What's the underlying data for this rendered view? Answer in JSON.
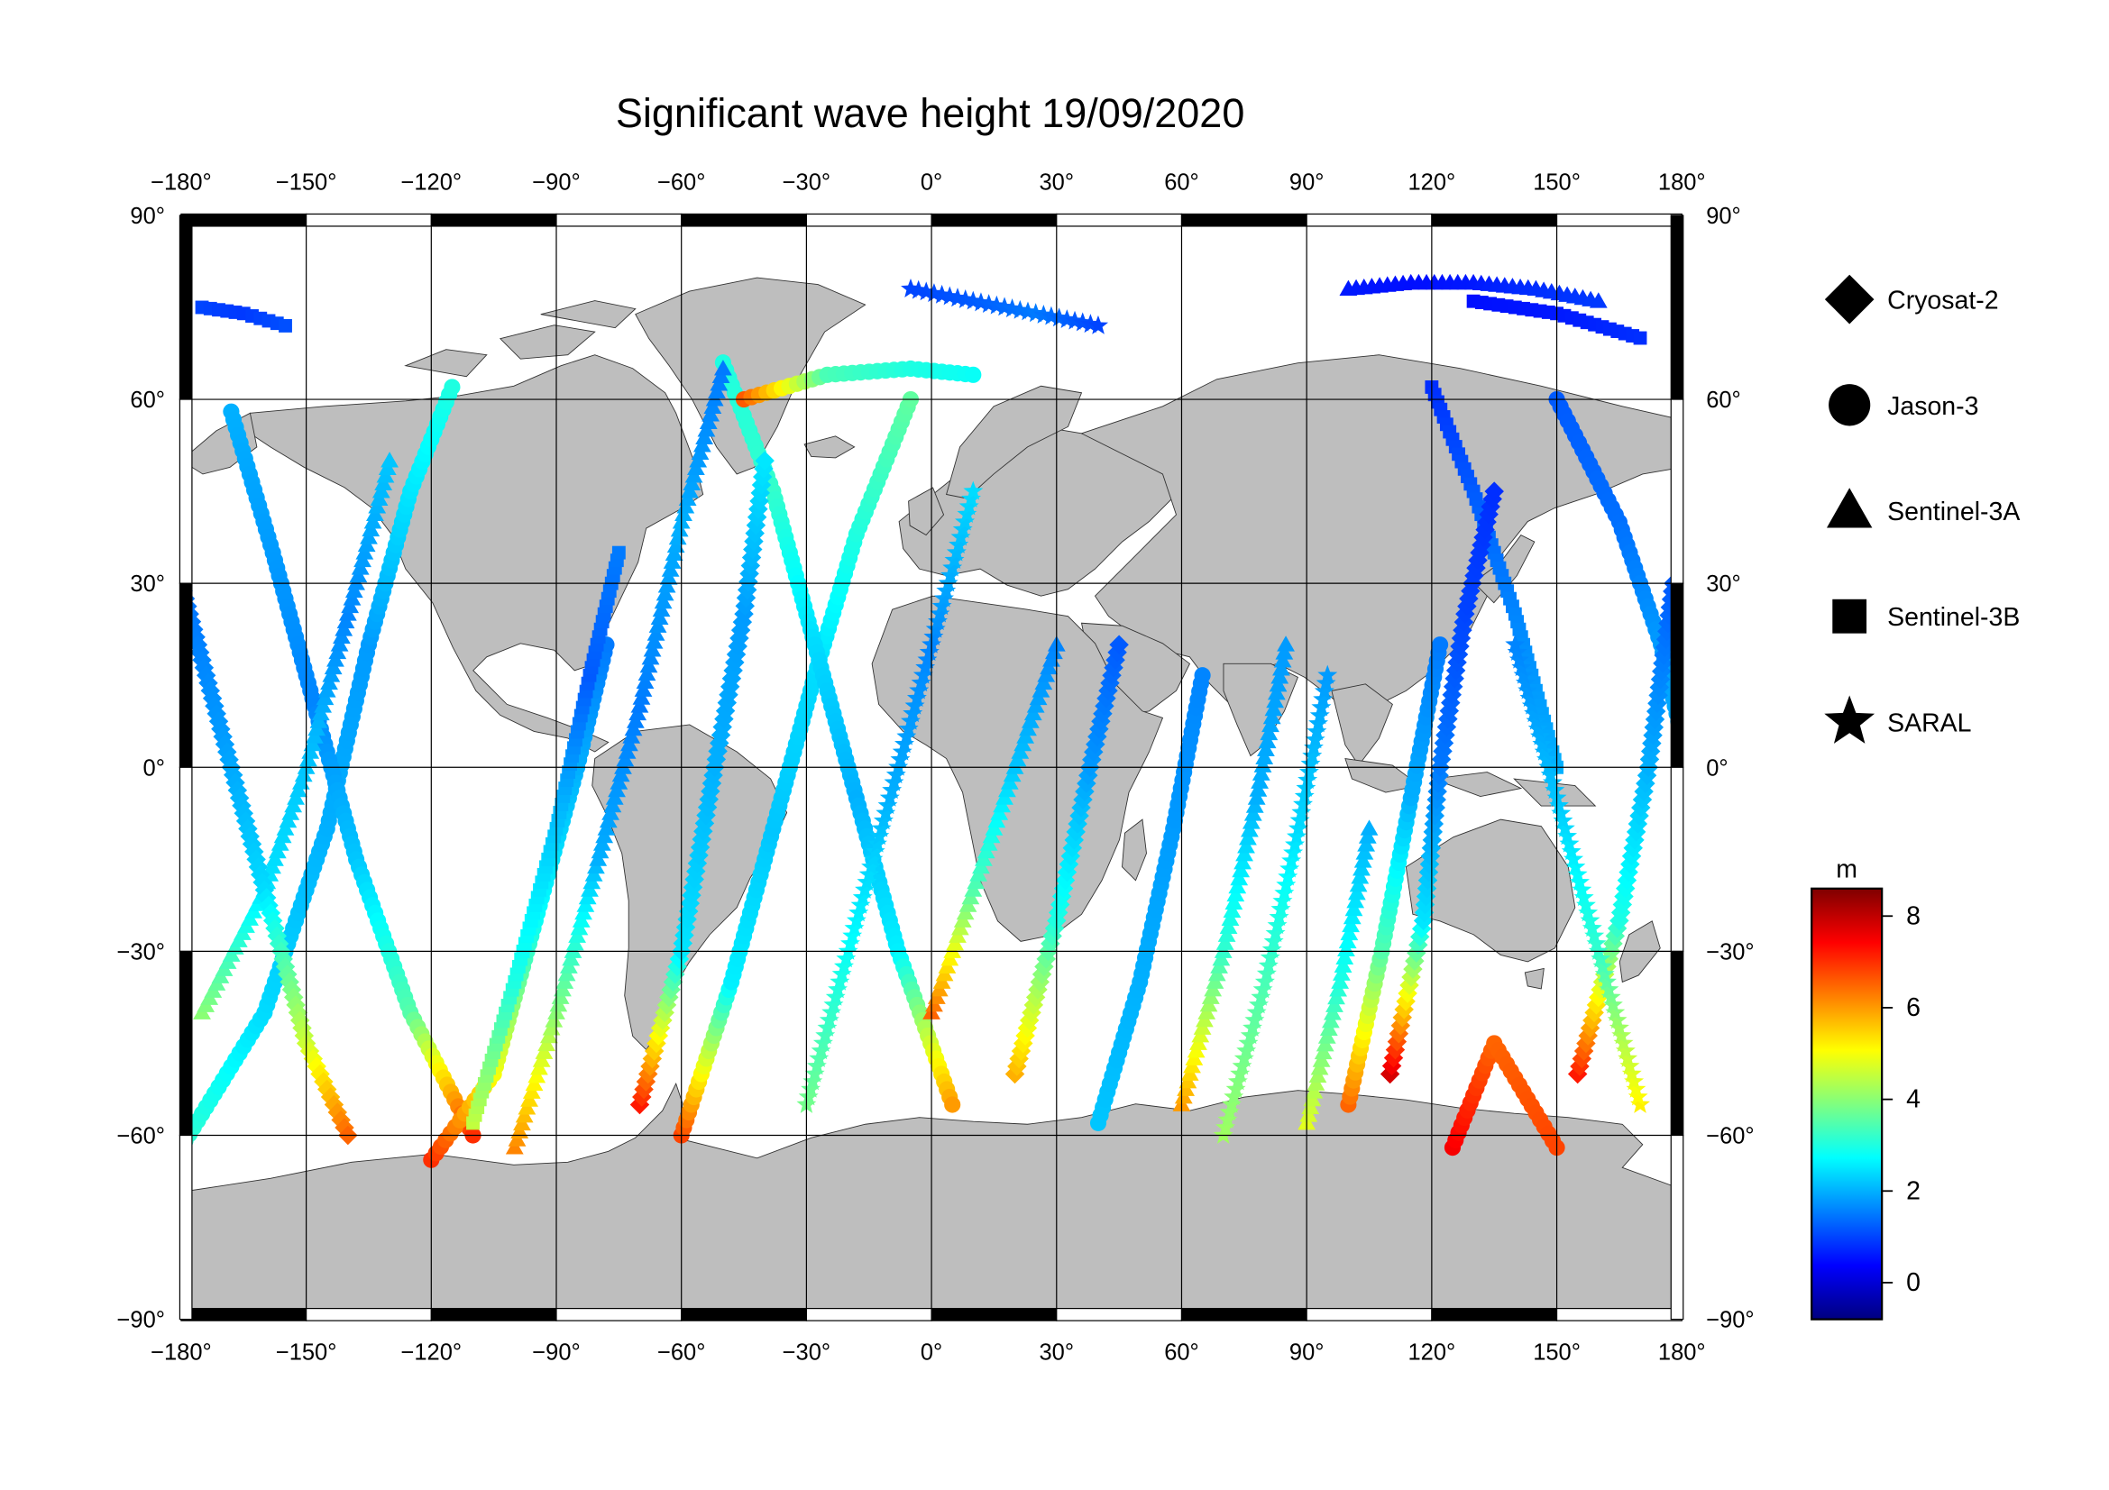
{
  "title": "Significant wave height 19/09/2020",
  "axes": {
    "lon_ticks": [
      -180,
      -150,
      -120,
      -90,
      -60,
      -30,
      0,
      30,
      60,
      90,
      120,
      150,
      180
    ],
    "lat_ticks": [
      90,
      60,
      30,
      0,
      -30,
      -60,
      -90
    ],
    "degree_symbol": "°"
  },
  "legend": {
    "items": [
      {
        "label": "Cryosat-2",
        "marker": "diamond"
      },
      {
        "label": "Jason-3",
        "marker": "circle"
      },
      {
        "label": "Sentinel-3A",
        "marker": "triangle"
      },
      {
        "label": "Sentinel-3B",
        "marker": "square"
      },
      {
        "label": "SARAL",
        "marker": "star"
      }
    ]
  },
  "colorbar": {
    "unit": "m",
    "min": -0.8,
    "max": 8.6,
    "ticks": [
      0,
      2,
      4,
      6,
      8
    ],
    "colormap": "jet"
  },
  "colors": {
    "land": "#bebebe",
    "ocean": "#ffffff",
    "frame": "#000000",
    "grid": "#000000"
  },
  "chart_data": {
    "type": "scatter",
    "title": "Significant wave height 19/09/2020",
    "xlabel": "",
    "ylabel": "",
    "xlim": [
      -180,
      180
    ],
    "ylim": [
      -90,
      90
    ],
    "value_unit": "m",
    "value_range": [
      -0.8,
      8.6
    ],
    "series": [
      {
        "name": "Cryosat-2",
        "marker": "diamond"
      },
      {
        "name": "Jason-3",
        "marker": "circle"
      },
      {
        "name": "Sentinel-3A",
        "marker": "triangle"
      },
      {
        "name": "Sentinel-3B",
        "marker": "square"
      },
      {
        "name": "SARAL",
        "marker": "star"
      }
    ],
    "tracks": [
      {
        "series": "Jason-3",
        "points": [
          [
            -180,
            -62,
            3.2
          ],
          [
            -160,
            -40,
            2.4
          ],
          [
            -145,
            -10,
            2.0
          ],
          [
            -135,
            20,
            1.8
          ],
          [
            -125,
            45,
            2.5
          ],
          [
            -115,
            62,
            3.0
          ]
        ]
      },
      {
        "series": "Jason-3",
        "points": [
          [
            -168,
            58,
            2.0
          ],
          [
            -158,
            35,
            1.8
          ],
          [
            -148,
            10,
            1.6
          ],
          [
            -138,
            -15,
            2.2
          ],
          [
            -125,
            -40,
            3.5
          ],
          [
            -110,
            -60,
            7.0
          ]
        ]
      },
      {
        "series": "Jason-3",
        "points": [
          [
            -120,
            -64,
            7.0
          ],
          [
            -105,
            -50,
            5.0
          ],
          [
            -95,
            -25,
            2.8
          ],
          [
            -85,
            0,
            2.0
          ],
          [
            -78,
            20,
            1.5
          ]
        ]
      },
      {
        "series": "Jason-3",
        "points": [
          [
            -60,
            -60,
            6.8
          ],
          [
            -48,
            -35,
            2.6
          ],
          [
            -38,
            -10,
            2.2
          ],
          [
            -28,
            15,
            2.4
          ],
          [
            -18,
            38,
            3.0
          ],
          [
            -5,
            60,
            3.6
          ]
        ]
      },
      {
        "series": "Jason-3",
        "points": [
          [
            -50,
            66,
            3.0
          ],
          [
            -38,
            45,
            3.2
          ],
          [
            -28,
            20,
            2.4
          ],
          [
            -18,
            -5,
            2.0
          ],
          [
            -8,
            -30,
            2.6
          ],
          [
            5,
            -55,
            6.0
          ]
        ]
      },
      {
        "series": "Jason-3",
        "points": [
          [
            -45,
            60,
            6.6
          ],
          [
            -25,
            64,
            3.4
          ],
          [
            -5,
            65,
            3.0
          ],
          [
            10,
            64,
            2.8
          ]
        ]
      },
      {
        "series": "Jason-3",
        "points": [
          [
            40,
            -58,
            2.2
          ],
          [
            50,
            -35,
            2.0
          ],
          [
            58,
            -10,
            1.8
          ],
          [
            65,
            15,
            1.6
          ]
        ]
      },
      {
        "series": "Jason-3",
        "points": [
          [
            100,
            -55,
            6.5
          ],
          [
            108,
            -30,
            3.5
          ],
          [
            115,
            -5,
            2.0
          ],
          [
            122,
            20,
            1.5
          ]
        ]
      },
      {
        "series": "Jason-3",
        "points": [
          [
            125,
            -62,
            7.5
          ],
          [
            135,
            -45,
            6.5
          ],
          [
            150,
            -62,
            6.8
          ]
        ]
      },
      {
        "series": "Jason-3",
        "points": [
          [
            150,
            60,
            1.2
          ],
          [
            165,
            40,
            1.4
          ],
          [
            175,
            20,
            1.8
          ],
          [
            180,
            5,
            2.0
          ]
        ]
      },
      {
        "series": "Sentinel-3A",
        "points": [
          [
            -175,
            -40,
            4.0
          ],
          [
            -160,
            -20,
            2.5
          ],
          [
            -150,
            0,
            2.2
          ],
          [
            -140,
            25,
            1.6
          ],
          [
            -130,
            50,
            2.2
          ]
        ]
      },
      {
        "series": "Sentinel-3A",
        "points": [
          [
            -100,
            -62,
            6.2
          ],
          [
            -90,
            -40,
            4.0
          ],
          [
            -80,
            -15,
            2.0
          ],
          [
            -70,
            10,
            1.5
          ],
          [
            -60,
            40,
            2.0
          ],
          [
            -50,
            65,
            1.5
          ]
        ]
      },
      {
        "series": "Sentinel-3A",
        "points": [
          [
            0,
            -40,
            6.5
          ],
          [
            10,
            -20,
            3.5
          ],
          [
            20,
            0,
            2.2
          ],
          [
            30,
            20,
            1.6
          ]
        ]
      },
      {
        "series": "Sentinel-3A",
        "points": [
          [
            60,
            -55,
            6.0
          ],
          [
            70,
            -30,
            3.2
          ],
          [
            78,
            -5,
            2.0
          ],
          [
            85,
            20,
            1.8
          ]
        ]
      },
      {
        "series": "Sentinel-3A",
        "points": [
          [
            90,
            -58,
            4.8
          ],
          [
            98,
            -35,
            3.0
          ],
          [
            105,
            -10,
            2.0
          ]
        ]
      },
      {
        "series": "Sentinel-3A",
        "points": [
          [
            100,
            78,
            0.6
          ],
          [
            115,
            79,
            0.5
          ],
          [
            130,
            79,
            0.6
          ],
          [
            145,
            78,
            0.8
          ],
          [
            160,
            76,
            0.9
          ]
        ]
      },
      {
        "series": "Sentinel-3B",
        "points": [
          [
            -175,
            75,
            1.0
          ],
          [
            -165,
            74,
            0.9
          ],
          [
            -155,
            72,
            1.1
          ]
        ]
      },
      {
        "series": "Sentinel-3B",
        "points": [
          [
            -110,
            -58,
            4.5
          ],
          [
            -100,
            -35,
            3.0
          ],
          [
            -90,
            -10,
            2.2
          ],
          [
            -82,
            15,
            1.2
          ],
          [
            -75,
            35,
            1.5
          ]
        ]
      },
      {
        "series": "Sentinel-3B",
        "points": [
          [
            120,
            62,
            0.8
          ],
          [
            130,
            45,
            1.2
          ],
          [
            140,
            25,
            1.6
          ],
          [
            150,
            0,
            2.0
          ]
        ]
      },
      {
        "series": "Sentinel-3B",
        "points": [
          [
            130,
            76,
            0.5
          ],
          [
            150,
            74,
            0.6
          ],
          [
            170,
            70,
            0.8
          ]
        ]
      },
      {
        "series": "Cryosat-2",
        "points": [
          [
            -180,
            30,
            1.4
          ],
          [
            -170,
            5,
            1.8
          ],
          [
            -160,
            -20,
            2.4
          ],
          [
            -150,
            -45,
            4.6
          ],
          [
            -140,
            -60,
            6.5
          ]
        ]
      },
      {
        "series": "Cryosat-2",
        "points": [
          [
            -70,
            -55,
            7.2
          ],
          [
            -60,
            -30,
            2.5
          ],
          [
            -52,
            0,
            2.0
          ],
          [
            -45,
            25,
            1.8
          ],
          [
            -40,
            50,
            2.5
          ]
        ]
      },
      {
        "series": "Cryosat-2",
        "points": [
          [
            20,
            -50,
            5.8
          ],
          [
            30,
            -25,
            3.0
          ],
          [
            38,
            0,
            1.8
          ],
          [
            45,
            20,
            1.2
          ]
        ]
      },
      {
        "series": "Cryosat-2",
        "points": [
          [
            110,
            -50,
            7.8
          ],
          [
            118,
            -25,
            2.5
          ],
          [
            122,
            0,
            1.5
          ],
          [
            128,
            25,
            1.0
          ],
          [
            135,
            45,
            0.8
          ]
        ]
      },
      {
        "series": "Cryosat-2",
        "points": [
          [
            155,
            -50,
            7.2
          ],
          [
            165,
            -25,
            3.0
          ],
          [
            172,
            0,
            2.0
          ],
          [
            178,
            30,
            1.2
          ]
        ]
      },
      {
        "series": "SARAL",
        "points": [
          [
            -5,
            78,
            1.0
          ],
          [
            10,
            76,
            1.2
          ],
          [
            25,
            74,
            1.5
          ],
          [
            40,
            72,
            1.0
          ]
        ]
      },
      {
        "series": "SARAL",
        "points": [
          [
            -30,
            -55,
            3.8
          ],
          [
            -20,
            -30,
            2.8
          ],
          [
            -10,
            -5,
            2.0
          ],
          [
            0,
            20,
            1.6
          ],
          [
            10,
            45,
            2.4
          ]
        ]
      },
      {
        "series": "SARAL",
        "points": [
          [
            70,
            -60,
            4.2
          ],
          [
            80,
            -35,
            3.4
          ],
          [
            88,
            -10,
            2.4
          ],
          [
            95,
            15,
            1.8
          ]
        ]
      },
      {
        "series": "SARAL",
        "points": [
          [
            170,
            -55,
            5.2
          ],
          [
            160,
            -30,
            3.2
          ],
          [
            150,
            -5,
            2.2
          ],
          [
            140,
            20,
            1.6
          ]
        ]
      }
    ]
  }
}
